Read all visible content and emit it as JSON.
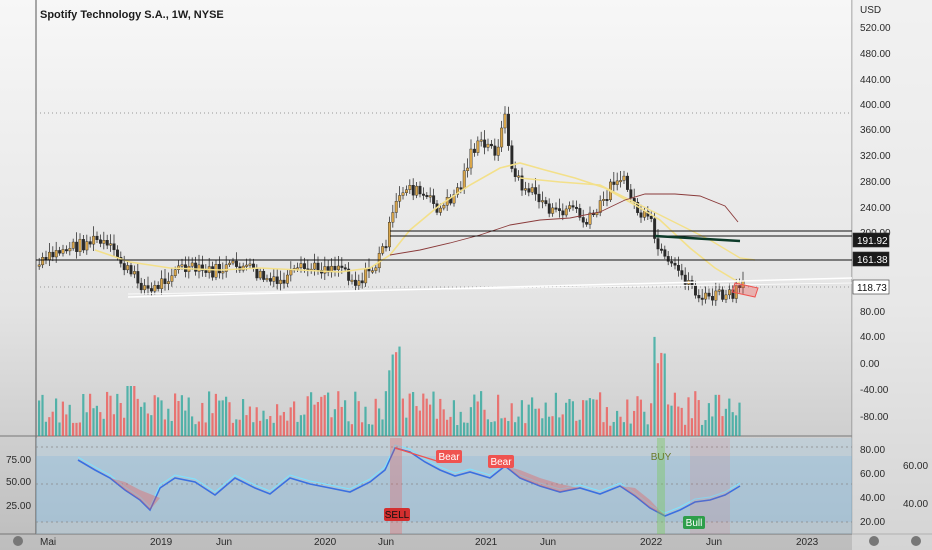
{
  "header": {
    "title": "Spotify Technology S.A., 1W, NYSE"
  },
  "price_axis": {
    "currency": "USD",
    "ticks": [
      "520.00",
      "480.00",
      "440.00",
      "400.00",
      "360.00",
      "320.00",
      "280.00",
      "240.00",
      "200.00",
      "80.00"
    ],
    "tags": [
      {
        "label": "191.92",
        "value": 191.92,
        "style": "dark"
      },
      {
        "label": "161.38",
        "value": 161.38,
        "style": "dark"
      },
      {
        "label": "118.73",
        "value": 118.73,
        "style": "light"
      }
    ]
  },
  "volume_axis": {
    "ticks": [
      "40.00",
      "0.00",
      "-40.00",
      "-80.00"
    ]
  },
  "indicator": {
    "left_ticks": [
      "75.00",
      "50.00",
      "25.00"
    ],
    "right_ticks": [
      "80.00",
      "60.00",
      "40.00",
      "20.00"
    ],
    "outer_ticks": [
      "60.00",
      "40.00"
    ],
    "labels": {
      "bear1": "Bear",
      "bear2": "Bear",
      "buy": "BUY",
      "bull": "Bull",
      "sell": "SELL"
    }
  },
  "time_axis": {
    "ticks": [
      "Mai",
      "2019",
      "Jun",
      "2020",
      "Jun",
      "2021",
      "Jun",
      "2022",
      "Jun",
      "2023"
    ]
  },
  "colors": {
    "up": "#26a69a",
    "down": "#ef5350",
    "candle_body": "#2a2a2a",
    "ma": "#f3e08a",
    "accent": "#2962ff"
  },
  "chart_data": {
    "type": "candlestick",
    "title": "Spotify Technology S.A., 1W, NYSE",
    "x": [
      "2018-05",
      "2018-09",
      "2019-01",
      "2019-06",
      "2019-10",
      "2020-03",
      "2020-07",
      "2020-10",
      "2021-02",
      "2021-06",
      "2021-09",
      "2021-12",
      "2022-03",
      "2022-06",
      "2022-08"
    ],
    "close": [
      160,
      185,
      112,
      145,
      135,
      110,
      240,
      280,
      380,
      240,
      240,
      290,
      200,
      100,
      118.73
    ],
    "yunit": "USD",
    "ylim": [
      80,
      540
    ],
    "levels": [
      191.92,
      161.38,
      118.73
    ],
    "last_price": 118.73
  }
}
